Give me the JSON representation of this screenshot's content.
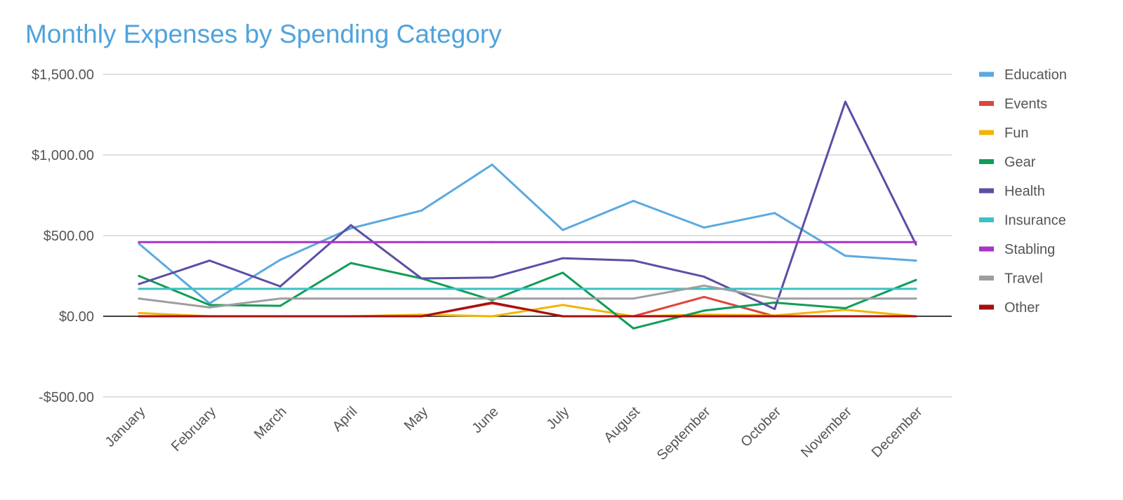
{
  "chart_data": {
    "type": "line",
    "title": "Monthly Expenses by Spending Category",
    "xlabel": "",
    "ylabel": "",
    "categories": [
      "January",
      "February",
      "March",
      "April",
      "May",
      "June",
      "July",
      "August",
      "September",
      "October",
      "November",
      "December"
    ],
    "y_ticks": [
      -500,
      0,
      500,
      1000,
      1500
    ],
    "y_tick_labels": [
      "-$500.00",
      "$0.00",
      "$500.00",
      "$1,000.00",
      "$1,500.00"
    ],
    "ylim": [
      -500,
      1500
    ],
    "grid": true,
    "legend_position": "right",
    "zero_line_color": "#000000",
    "series": [
      {
        "name": "Education",
        "color": "#5aa9e0",
        "values": [
          450,
          80,
          350,
          545,
          655,
          940,
          535,
          715,
          550,
          640,
          375,
          345
        ]
      },
      {
        "name": "Events",
        "color": "#e0443a",
        "values": [
          0,
          0,
          0,
          0,
          0,
          80,
          0,
          0,
          120,
          0,
          0,
          0
        ]
      },
      {
        "name": "Fun",
        "color": "#f4b400",
        "values": [
          20,
          0,
          0,
          0,
          10,
          0,
          70,
          0,
          10,
          5,
          40,
          0
        ]
      },
      {
        "name": "Gear",
        "color": "#0f9d58",
        "values": [
          250,
          70,
          65,
          330,
          235,
          100,
          270,
          -75,
          35,
          85,
          50,
          225
        ]
      },
      {
        "name": "Health",
        "color": "#5c4ea5",
        "values": [
          200,
          345,
          185,
          565,
          235,
          240,
          360,
          345,
          245,
          45,
          1330,
          445
        ]
      },
      {
        "name": "Insurance",
        "color": "#3fc0c4",
        "values": [
          170,
          170,
          170,
          170,
          170,
          170,
          170,
          170,
          170,
          170,
          170,
          170
        ]
      },
      {
        "name": "Stabling",
        "color": "#a834c8",
        "values": [
          460,
          460,
          460,
          460,
          460,
          460,
          460,
          460,
          460,
          460,
          460,
          460
        ]
      },
      {
        "name": "Travel",
        "color": "#9e9e9e",
        "values": [
          110,
          55,
          110,
          110,
          110,
          110,
          110,
          110,
          190,
          110,
          110,
          110
        ]
      },
      {
        "name": "Other",
        "color": "#a50f0f",
        "values": [
          0,
          0,
          0,
          0,
          0,
          85,
          0,
          0,
          0,
          0,
          0,
          0
        ]
      }
    ]
  }
}
